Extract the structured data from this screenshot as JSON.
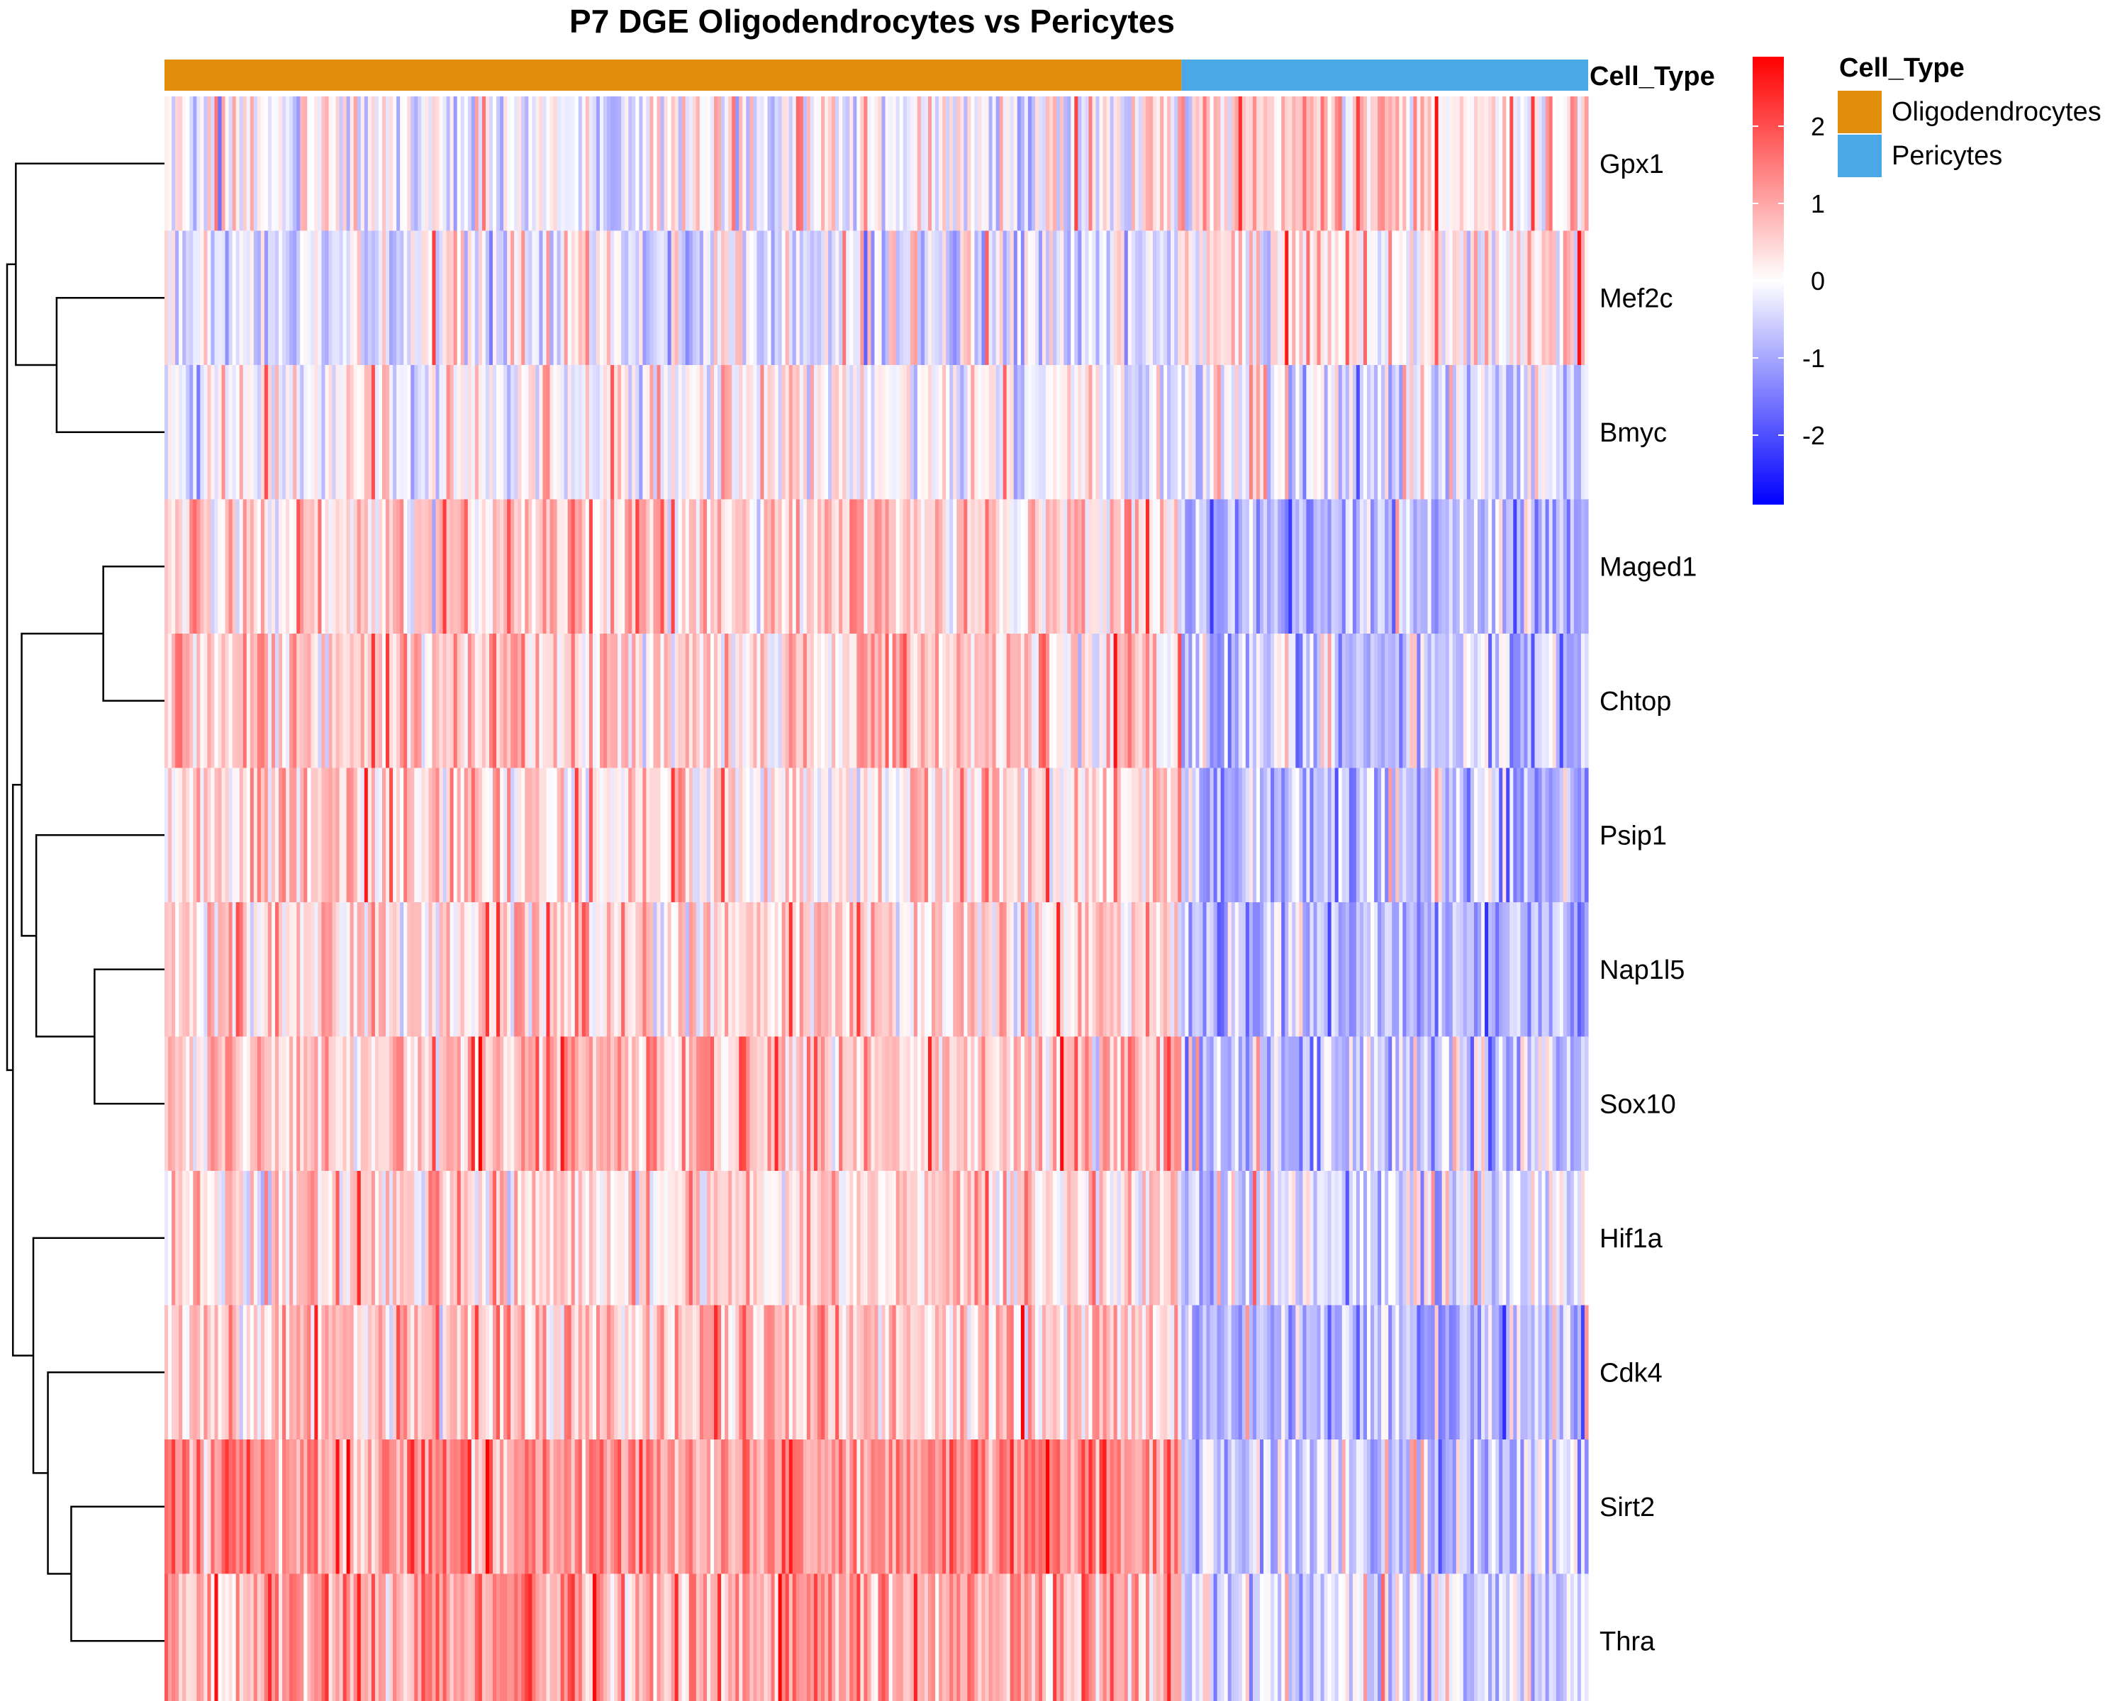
{
  "chart_data": {
    "type": "heatmap",
    "title": "P7 DGE Oligodendrocytes vs Pericytes",
    "annotation": {
      "name": "Cell_Type",
      "groups": [
        {
          "label": "Oligodendrocytes",
          "color": "#E08E0B",
          "columns": 285
        },
        {
          "label": "Pericytes",
          "color": "#4AA8E6",
          "columns": 114
        }
      ]
    },
    "rows": [
      "Gpx1",
      "Mef2c",
      "Bmyc",
      "Maged1",
      "Chtop",
      "Psip1",
      "Nap1l5",
      "Sox10",
      "Hif1a",
      "Cdk4",
      "Sirt2",
      "Thra"
    ],
    "colorbar": {
      "ticks": [
        2,
        1,
        0,
        -1,
        -2
      ],
      "range": [
        -2.9,
        2.9
      ],
      "colors": {
        "low": "#0000FF",
        "mid": "#FFFFFF",
        "high": "#FF0000"
      }
    },
    "row_means": {
      "oligodendrocytes": [
        -0.1,
        -0.35,
        -0.05,
        0.45,
        0.5,
        0.35,
        0.45,
        0.6,
        0.4,
        0.6,
        1.2,
        0.9
      ],
      "pericytes": [
        0.45,
        0.2,
        -0.45,
        -0.85,
        -0.75,
        -0.75,
        -0.95,
        -0.7,
        -0.45,
        -0.9,
        -0.6,
        -0.5
      ]
    },
    "dendrogram": {
      "merges": [
        [
          -4,
          -5
        ],
        [
          -7,
          -8
        ],
        [
          -11,
          -12
        ],
        [
          -2,
          -3
        ],
        [
          -10,
          3
        ],
        [
          -6,
          2
        ],
        [
          -9,
          5
        ],
        [
          1,
          6
        ],
        [
          -1,
          4
        ],
        [
          8,
          7
        ],
        [
          9,
          10
        ]
      ],
      "heights": [
        0.21,
        0.24,
        0.32,
        0.37,
        0.4,
        0.44,
        0.45,
        0.49,
        0.51,
        0.52,
        0.54
      ]
    }
  }
}
